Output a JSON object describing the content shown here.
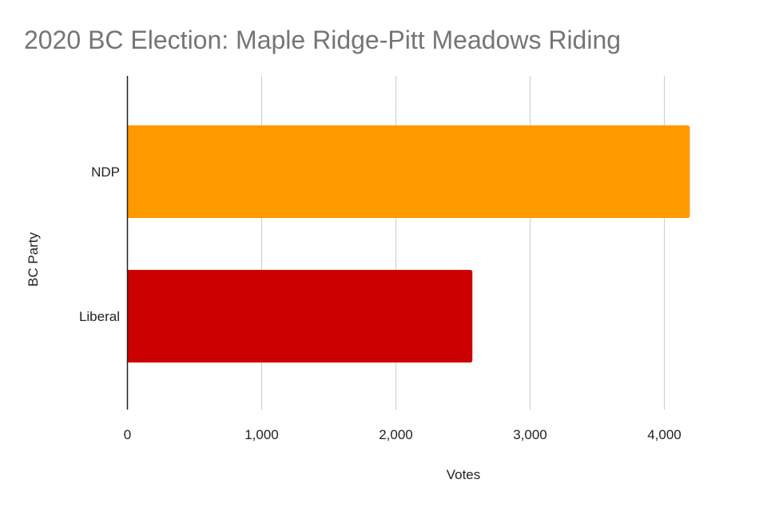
{
  "chart_data": {
    "type": "bar",
    "orientation": "horizontal",
    "title": "2020 BC Election: Maple Ridge-Pitt Meadows Riding",
    "xlabel": "Votes",
    "ylabel": "BC Party",
    "categories": [
      "NDP",
      "Liberal"
    ],
    "values": [
      4190,
      2570
    ],
    "colors": [
      "#ff9900",
      "#cc0000"
    ],
    "xlim": [
      0,
      4200
    ],
    "xticks": [
      0,
      1000,
      2000,
      3000,
      4000
    ],
    "xtick_labels": [
      "0",
      "1,000",
      "2,000",
      "3,000",
      "4,000"
    ],
    "grid": "vertical",
    "legend": "none"
  }
}
